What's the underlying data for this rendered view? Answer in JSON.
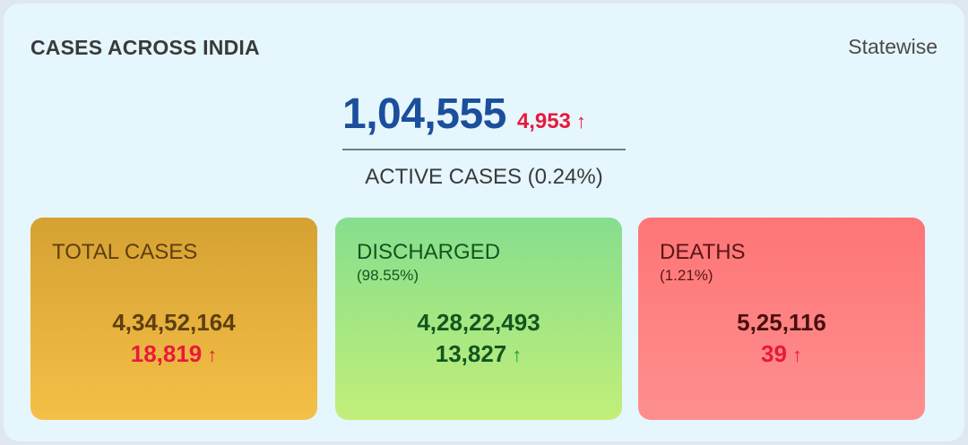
{
  "header": {
    "title": "CASES ACROSS INDIA",
    "statewise_label": "Statewise"
  },
  "active": {
    "value": "1,04,555",
    "delta": "4,953",
    "delta_arrow": "↑",
    "label": "ACTIVE CASES (0.24%)"
  },
  "cards": {
    "total": {
      "label": "TOTAL CASES",
      "value": "4,34,52,164",
      "delta": "18,819",
      "delta_arrow": "↑"
    },
    "discharged": {
      "label": "DISCHARGED",
      "sub": "(98.55%)",
      "value": "4,28,22,493",
      "delta": "13,827",
      "delta_arrow": "↑"
    },
    "deaths": {
      "label": "DEATHS",
      "sub": "(1.21%)",
      "value": "5,25,116",
      "delta": "39",
      "delta_arrow": "↑"
    }
  },
  "colors": {
    "panel_bg": "#e5f6fd",
    "active_blue": "#1b4f9c",
    "increase_red": "#e8193c",
    "total_card": "#e5b03c",
    "discharged_card": "#a8e784",
    "deaths_card": "#fe8283"
  }
}
